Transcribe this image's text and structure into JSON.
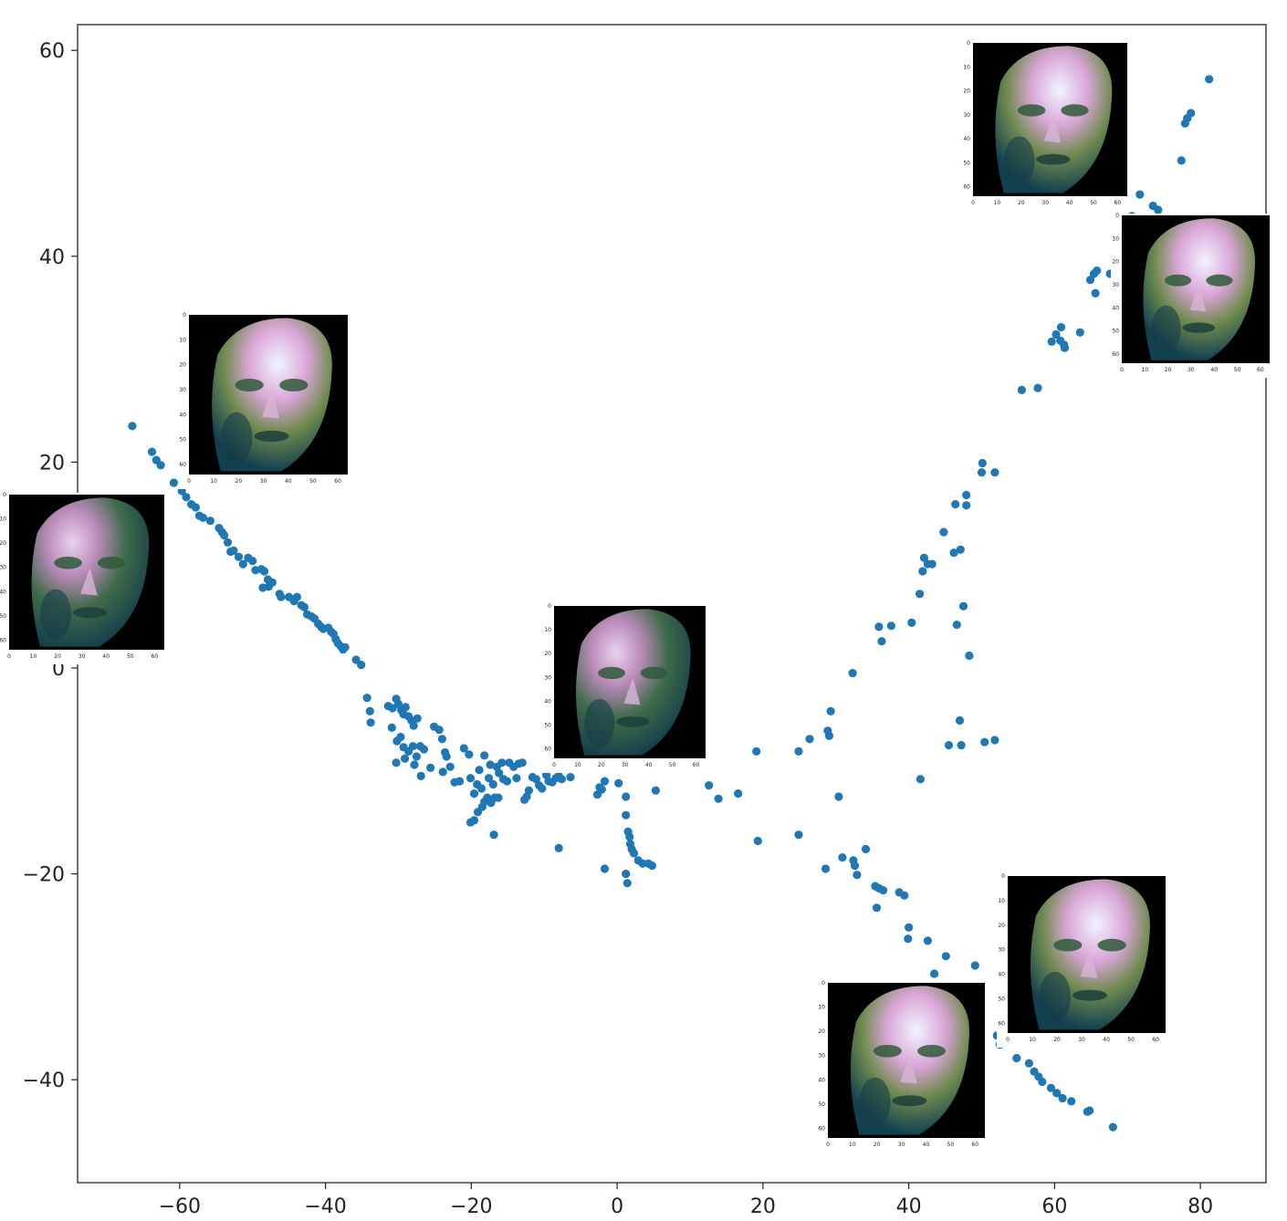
{
  "chart_data": {
    "type": "scatter",
    "title": "",
    "xlabel": "",
    "ylabel": "",
    "xlim": [
      -74,
      89
    ],
    "ylim": [
      -50,
      62.5
    ],
    "grid": false,
    "legend": null,
    "x_ticks": [
      {
        "value": -60,
        "label": "−60"
      },
      {
        "value": -40,
        "label": "−40"
      },
      {
        "value": -20,
        "label": "−20"
      },
      {
        "value": 0,
        "label": "0"
      },
      {
        "value": 20,
        "label": "20"
      },
      {
        "value": 40,
        "label": "40"
      },
      {
        "value": 60,
        "label": "60"
      },
      {
        "value": 80,
        "label": "80"
      }
    ],
    "y_ticks": [
      {
        "value": 60,
        "label": "60"
      },
      {
        "value": 40,
        "label": "40"
      },
      {
        "value": 20,
        "label": "20"
      },
      {
        "value": 0,
        "label": "0"
      },
      {
        "value": -20,
        "label": "−20"
      },
      {
        "value": -40,
        "label": "−40"
      }
    ],
    "marker_color": "#1f77b4",
    "series": [
      {
        "points": [
          [
            -66.5,
            23.5
          ],
          [
            -63.8,
            21.0
          ],
          [
            -63.2,
            20.2
          ],
          [
            -62.6,
            19.7
          ],
          [
            -60.8,
            18.0
          ],
          [
            -59.7,
            17.2
          ],
          [
            -59.1,
            16.6
          ],
          [
            -58.4,
            15.9
          ],
          [
            -57.8,
            15.6
          ],
          [
            -57.3,
            14.8
          ],
          [
            -56.8,
            14.6
          ],
          [
            -55.8,
            14.3
          ],
          [
            -54.6,
            13.6
          ],
          [
            -54.2,
            13.2
          ],
          [
            -53.9,
            12.9
          ],
          [
            -53.4,
            12.2
          ],
          [
            -53.0,
            11.3
          ],
          [
            -52.6,
            11.4
          ],
          [
            -51.9,
            10.8
          ],
          [
            -51.3,
            10.1
          ],
          [
            -50.6,
            10.7
          ],
          [
            -50.0,
            10.4
          ],
          [
            -49.6,
            9.5
          ],
          [
            -48.8,
            9.6
          ],
          [
            -48.4,
            9.4
          ],
          [
            -47.9,
            8.6
          ],
          [
            -47.3,
            8.3
          ],
          [
            -47.8,
            7.9
          ],
          [
            -48.6,
            7.8
          ],
          [
            -46.3,
            7.2
          ],
          [
            -46.1,
            6.9
          ],
          [
            -45.0,
            6.9
          ],
          [
            -44.3,
            6.5
          ],
          [
            -43.9,
            6.9
          ],
          [
            -43.3,
            6.1
          ],
          [
            -42.9,
            5.9
          ],
          [
            -42.5,
            5.2
          ],
          [
            -41.9,
            5.0
          ],
          [
            -41.5,
            4.8
          ],
          [
            -41.0,
            4.3
          ],
          [
            -40.6,
            4.0
          ],
          [
            -40.3,
            3.8
          ],
          [
            -39.6,
            3.9
          ],
          [
            -39.2,
            3.5
          ],
          [
            -38.9,
            3.3
          ],
          [
            -38.6,
            2.8
          ],
          [
            -38.3,
            2.4
          ],
          [
            -37.9,
            2.1
          ],
          [
            -37.6,
            1.8
          ],
          [
            -37.3,
            2.0
          ],
          [
            -35.8,
            0.8
          ],
          [
            -35.1,
            0.3
          ],
          [
            -34.3,
            -2.9
          ],
          [
            -33.9,
            -4.2
          ],
          [
            -33.8,
            -5.3
          ],
          [
            -31.4,
            -3.7
          ],
          [
            -30.8,
            -3.9
          ],
          [
            -30.3,
            -3.0
          ],
          [
            -30.0,
            -3.5
          ],
          [
            -29.6,
            -4.1
          ],
          [
            -29.3,
            -4.5
          ],
          [
            -29.0,
            -3.8
          ],
          [
            -28.6,
            -4.7
          ],
          [
            -28.2,
            -5.1
          ],
          [
            -27.9,
            -5.6
          ],
          [
            -27.4,
            -4.9
          ],
          [
            -30.9,
            -5.8
          ],
          [
            -30.2,
            -7.1
          ],
          [
            -29.7,
            -6.7
          ],
          [
            -29.3,
            -7.7
          ],
          [
            -28.6,
            -8.1
          ],
          [
            -28.0,
            -7.6
          ],
          [
            -27.5,
            -8.6
          ],
          [
            -27.0,
            -7.6
          ],
          [
            -26.5,
            -7.9
          ],
          [
            -30.3,
            -9.2
          ],
          [
            -29.1,
            -8.8
          ],
          [
            -27.8,
            -9.4
          ],
          [
            -26.9,
            -10.5
          ],
          [
            -25.6,
            -9.7
          ],
          [
            -25.1,
            -5.7
          ],
          [
            -24.4,
            -6.0
          ],
          [
            -24.0,
            -6.9
          ],
          [
            -23.6,
            -8.2
          ],
          [
            -23.4,
            -8.6
          ],
          [
            -23.9,
            -10.1
          ],
          [
            -22.9,
            -9.6
          ],
          [
            -22.3,
            -11.1
          ],
          [
            -21.6,
            -11.0
          ],
          [
            -21.0,
            -7.8
          ],
          [
            -20.3,
            -8.4
          ],
          [
            -20.1,
            -10.7
          ],
          [
            -19.6,
            -12.2
          ],
          [
            -19.2,
            -11.3
          ],
          [
            -18.9,
            -9.9
          ],
          [
            -18.6,
            -11.7
          ],
          [
            -18.2,
            -8.5
          ],
          [
            -18.2,
            -13.0
          ],
          [
            -17.8,
            -12.6
          ],
          [
            -17.6,
            -10.7
          ],
          [
            -17.4,
            -9.4
          ],
          [
            -17.0,
            -11.3
          ],
          [
            -16.8,
            -12.6
          ],
          [
            -16.5,
            -9.6
          ],
          [
            -16.2,
            -10.2
          ],
          [
            -15.8,
            -9.2
          ],
          [
            -15.6,
            -10.8
          ],
          [
            -15.1,
            -11.0
          ],
          [
            -14.8,
            -9.2
          ],
          [
            -14.2,
            -9.6
          ],
          [
            -13.8,
            -10.7
          ],
          [
            -13.5,
            -9.3
          ],
          [
            -13.0,
            -9.2
          ],
          [
            -12.7,
            -12.8
          ],
          [
            -12.4,
            -12.5
          ],
          [
            -12.1,
            -11.9
          ],
          [
            -11.6,
            -10.6
          ],
          [
            -11.1,
            -10.8
          ],
          [
            -10.7,
            -11.4
          ],
          [
            -10.3,
            -11.7
          ],
          [
            -9.7,
            -10.4
          ],
          [
            -9.4,
            -11.0
          ],
          [
            -8.9,
            -11.1
          ],
          [
            -8.4,
            -10.7
          ],
          [
            -8.0,
            -10.5
          ],
          [
            -7.6,
            -10.8
          ],
          [
            -20.1,
            -15.0
          ],
          [
            -19.6,
            -14.8
          ],
          [
            -19.1,
            -14.0
          ],
          [
            -18.5,
            -13.5
          ],
          [
            -17.3,
            -13.1
          ],
          [
            -16.9,
            -16.2
          ],
          [
            -16.3,
            -12.6
          ],
          [
            -8.0,
            -17.5
          ],
          [
            -6.4,
            -10.6
          ],
          [
            -2.7,
            -12.3
          ],
          [
            -2.4,
            -11.6
          ],
          [
            -2.1,
            -11.8
          ],
          [
            -1.7,
            -11.0
          ],
          [
            -1.7,
            -19.5
          ],
          [
            0.2,
            -11.2
          ],
          [
            1.2,
            -12.5
          ],
          [
            1.2,
            -20.0
          ],
          [
            1.4,
            -20.9
          ],
          [
            1.2,
            -14.3
          ],
          [
            1.5,
            -15.9
          ],
          [
            1.7,
            -16.4
          ],
          [
            1.8,
            -17.1
          ],
          [
            2.0,
            -17.6
          ],
          [
            2.3,
            -18.0
          ],
          [
            2.9,
            -18.7
          ],
          [
            3.5,
            -19.0
          ],
          [
            4.3,
            -19.0
          ],
          [
            4.8,
            -19.2
          ],
          [
            5.3,
            -11.9
          ],
          [
            12.6,
            -11.4
          ],
          [
            13.9,
            -12.7
          ],
          [
            16.6,
            -12.2
          ],
          [
            19.1,
            -8.1
          ],
          [
            19.3,
            -16.8
          ],
          [
            24.9,
            -8.1
          ],
          [
            24.9,
            -16.2
          ],
          [
            26.4,
            -6.9
          ],
          [
            28.6,
            -19.5
          ],
          [
            28.9,
            -6.1
          ],
          [
            29.1,
            -6.6
          ],
          [
            29.3,
            -4.2
          ],
          [
            30.4,
            -12.5
          ],
          [
            30.9,
            -18.4
          ],
          [
            32.4,
            -18.7
          ],
          [
            32.6,
            -19.2
          ],
          [
            32.9,
            -20.1
          ],
          [
            32.3,
            -0.5
          ],
          [
            34.1,
            -17.6
          ],
          [
            35.4,
            -21.2
          ],
          [
            35.9,
            -21.4
          ],
          [
            36.5,
            -21.6
          ],
          [
            35.6,
            -23.3
          ],
          [
            35.9,
            4.0
          ],
          [
            36.3,
            2.6
          ],
          [
            37.6,
            4.1
          ],
          [
            38.7,
            -21.8
          ],
          [
            39.4,
            -22.1
          ],
          [
            40.0,
            -25.2
          ],
          [
            39.9,
            -26.3
          ],
          [
            40.4,
            4.4
          ],
          [
            41.5,
            7.2
          ],
          [
            41.6,
            -10.8
          ],
          [
            41.9,
            9.4
          ],
          [
            42.1,
            10.7
          ],
          [
            42.6,
            10.1
          ],
          [
            43.2,
            10.1
          ],
          [
            42.6,
            -26.5
          ],
          [
            43.5,
            -29.7
          ],
          [
            44.8,
            13.2
          ],
          [
            45.1,
            -28.0
          ],
          [
            46.2,
            11.2
          ],
          [
            45.5,
            -7.5
          ],
          [
            46.4,
            15.9
          ],
          [
            46.6,
            4.2
          ],
          [
            47.1,
            11.5
          ],
          [
            47.0,
            -5.1
          ],
          [
            47.2,
            -7.5
          ],
          [
            47.5,
            6.0
          ],
          [
            47.9,
            16.8
          ],
          [
            47.9,
            15.8
          ],
          [
            48.3,
            1.2
          ],
          [
            49.1,
            -28.9
          ],
          [
            50.0,
            19.0
          ],
          [
            50.1,
            19.9
          ],
          [
            50.4,
            -7.2
          ],
          [
            51.8,
            19.0
          ],
          [
            51.8,
            -7.0
          ],
          [
            52.1,
            -35.7
          ],
          [
            52.5,
            -36.6
          ],
          [
            54.8,
            -37.9
          ],
          [
            56.5,
            -38.4
          ],
          [
            57.2,
            -39.2
          ],
          [
            57.8,
            -39.7
          ],
          [
            58.3,
            -40.2
          ],
          [
            59.5,
            -40.8
          ],
          [
            60.3,
            -41.3
          ],
          [
            61.1,
            -41.8
          ],
          [
            62.3,
            -42.1
          ],
          [
            64.5,
            -43.1
          ],
          [
            64.8,
            -43.0
          ],
          [
            68.0,
            -44.6
          ],
          [
            55.5,
            27.0
          ],
          [
            57.7,
            27.2
          ],
          [
            59.6,
            31.7
          ],
          [
            60.2,
            32.4
          ],
          [
            60.8,
            31.8
          ],
          [
            60.9,
            33.1
          ],
          [
            61.3,
            31.4
          ],
          [
            61.4,
            31.1
          ],
          [
            63.5,
            32.6
          ],
          [
            64.9,
            37.7
          ],
          [
            65.4,
            38.3
          ],
          [
            65.6,
            36.4
          ],
          [
            65.8,
            38.6
          ],
          [
            67.6,
            38.3
          ],
          [
            68.8,
            40.7
          ],
          [
            70.6,
            43.9
          ],
          [
            71.7,
            46.0
          ],
          [
            73.5,
            44.9
          ],
          [
            74.2,
            44.5
          ],
          [
            74.1,
            40.0
          ],
          [
            77.4,
            49.3
          ],
          [
            77.9,
            52.9
          ],
          [
            78.2,
            53.4
          ],
          [
            78.7,
            53.9
          ],
          [
            81.2,
            57.2
          ]
        ]
      }
    ]
  }
}
